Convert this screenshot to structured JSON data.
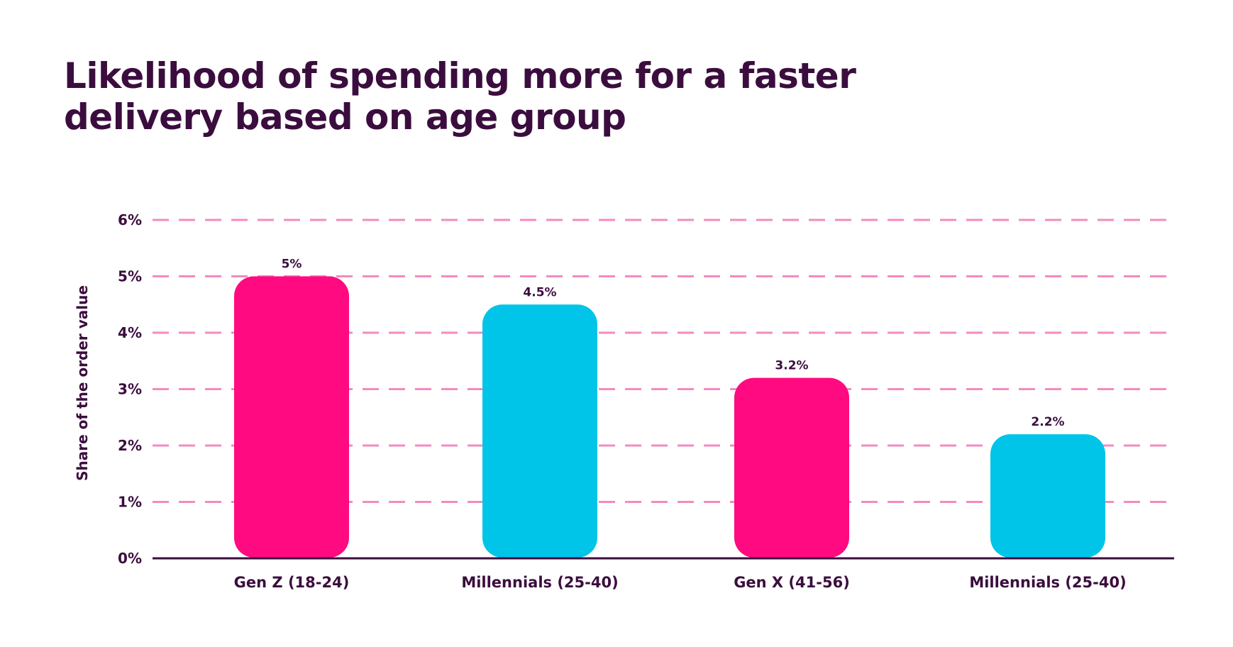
{
  "chart_data": {
    "type": "bar",
    "title": "Likelihood of spending more for a faster delivery based on age group",
    "xlabel": "",
    "ylabel": "Share of the order value",
    "categories": [
      "Gen Z (18-24)",
      "Millennials (25-40)",
      "Gen X (41-56)",
      "Millennials (25-40)"
    ],
    "values": [
      5,
      4.5,
      3.2,
      2.2
    ],
    "data_labels": [
      "5%",
      "4.5%",
      "3.2%",
      "2.2%"
    ],
    "bar_colors": [
      "#ff0a80",
      "#00c5e8",
      "#ff0a80",
      "#00c5e8"
    ],
    "ylim": [
      0,
      6
    ],
    "yticks": [
      0,
      1,
      2,
      3,
      4,
      5,
      6
    ],
    "ytick_labels": [
      "0%",
      "1%",
      "2%",
      "3%",
      "4%",
      "5%",
      "6%"
    ],
    "grid": true,
    "grid_style": "dashed",
    "grid_color": "#f38bc0",
    "axis_color": "#3b0d3e",
    "legend": "none"
  }
}
